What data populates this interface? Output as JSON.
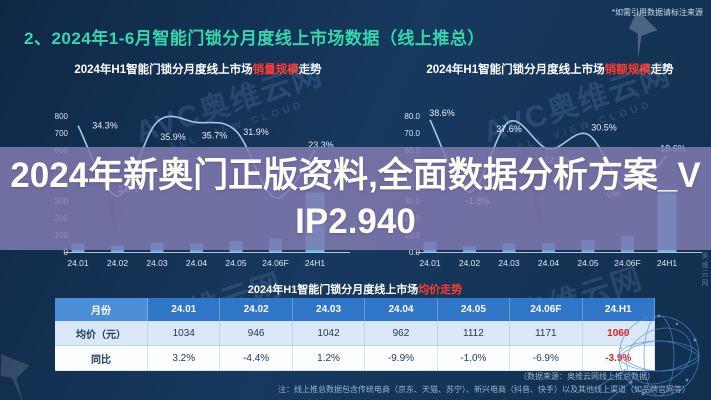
{
  "page": {
    "note_top_right": "*如需引用数据请标注来源",
    "title": "2、2024年1-6月智能门锁分月度线上市场数据（线上推总）",
    "overlay_text": "2024年新奥门正版资料,全面数据分析方案_VIP2.940",
    "overlay_lines": [
      "2024年新奥门正版资料,全面数据分析方案_V",
      "IP2.940"
    ],
    "footer_source": "（数据来源：奥维云网线上推总数据）",
    "footer_note": "注：线上推总数据包含传统电商（京东、天猫、苏宁）、新兴电商（抖音、快手）以及其他线上渠道（如品牌官网等）",
    "watermark": {
      "brand": "AVC奥维云网",
      "cn": "奥维云网",
      "en": "ALL VIEW CLOUD"
    }
  },
  "colors": {
    "accent_teal": "#36d6ae",
    "highlight_red": "#ff3b30",
    "table_red": "#e02020",
    "bar_blue": "#5fa8df",
    "bar_blue_h1": "#5cbde6",
    "line_blue": "#a5c8ea",
    "overlay_purple": "rgba(128,122,176,0.86)",
    "background_navy": "#16345a"
  },
  "chart_data": [
    {
      "type": "bar",
      "title_prefix": "2024年H1智能门锁分月度线上市场",
      "title_highlight": "销量规模",
      "title_suffix": "走势",
      "categories": [
        "24.01",
        "24.02",
        "24.03",
        "24.04",
        "24.05",
        "24.06F",
        "24H1"
      ],
      "series": [
        {
          "name": "销量规模",
          "kind": "bar",
          "values": [
            50,
            38,
            55,
            50,
            65,
            78,
            350
          ]
        },
        {
          "name": "同比",
          "kind": "line",
          "values": [
            34.3,
            2.8,
            35.9,
            35.7,
            31.9,
            2,
            23.3
          ],
          "labels": [
            "34.3%",
            "2.8%",
            "35.9%",
            "35.7%",
            "31.9%",
            "",
            "23.3%"
          ]
        }
      ],
      "ylim": [
        0,
        800
      ],
      "yticks": [
        "800",
        "700",
        "600",
        "500",
        "400",
        "300",
        "200",
        "100",
        "0"
      ],
      "grid": false,
      "label_dx": [
        27,
        11,
        16,
        18,
        20,
        0,
        6
      ],
      "label_dy": [
        3,
        -4,
        18,
        16,
        4,
        0,
        -2
      ]
    },
    {
      "type": "bar",
      "title_prefix": "2024年H1智能门锁分月度线上市场",
      "title_highlight": "销额规模",
      "title_suffix": "走势",
      "categories": [
        "24.01",
        "24.02",
        "24.03",
        "24.04",
        "24.05",
        "24.06F",
        "24H1"
      ],
      "series": [
        {
          "name": "销额规模",
          "kind": "bar",
          "values": [
            6,
            3.4,
            5.2,
            5.3,
            7,
            9.3,
            36.5
          ]
        },
        {
          "name": "同比",
          "kind": "line",
          "values": [
            38.6,
            -1.8,
            37.6,
            22.3,
            30.5,
            0,
            18.6
          ],
          "labels": [
            "38.6%",
            "-1.8%",
            "37.6%",
            "22.3%",
            "30.5%",
            "0%",
            "18.6%"
          ]
        }
      ],
      "ylim": [
        0,
        80
      ],
      "yticks": [
        "80.0",
        "70.0",
        "60.0",
        "50.0",
        "40.0",
        "30.0",
        "20.0",
        "10.0",
        "0.0"
      ],
      "grid": false,
      "label_dx": [
        12,
        8,
        0,
        8,
        16,
        -14,
        6
      ],
      "label_dy": [
        -4,
        12,
        10,
        14,
        -4,
        8,
        -4
      ]
    },
    {
      "type": "table",
      "title_prefix": "2024年H1智能门锁分月度线上市场",
      "title_highlight": "均价走势",
      "title_suffix": "",
      "columns": [
        "月份",
        "24.01",
        "24.02",
        "24.03",
        "24.04",
        "24.05",
        "24.06F",
        "24.H1"
      ],
      "rows": [
        {
          "label": "均价（元）",
          "values": [
            "1034",
            "946",
            "1042",
            "962",
            "1112",
            "1171",
            "1060"
          ]
        },
        {
          "label": "同比",
          "values": [
            "3.2%",
            "-4.4%",
            "1.2%",
            "-9.9%",
            "-1.0%",
            "-6.9%",
            "-3.9%"
          ]
        }
      ],
      "highlight_last_column": true
    }
  ]
}
